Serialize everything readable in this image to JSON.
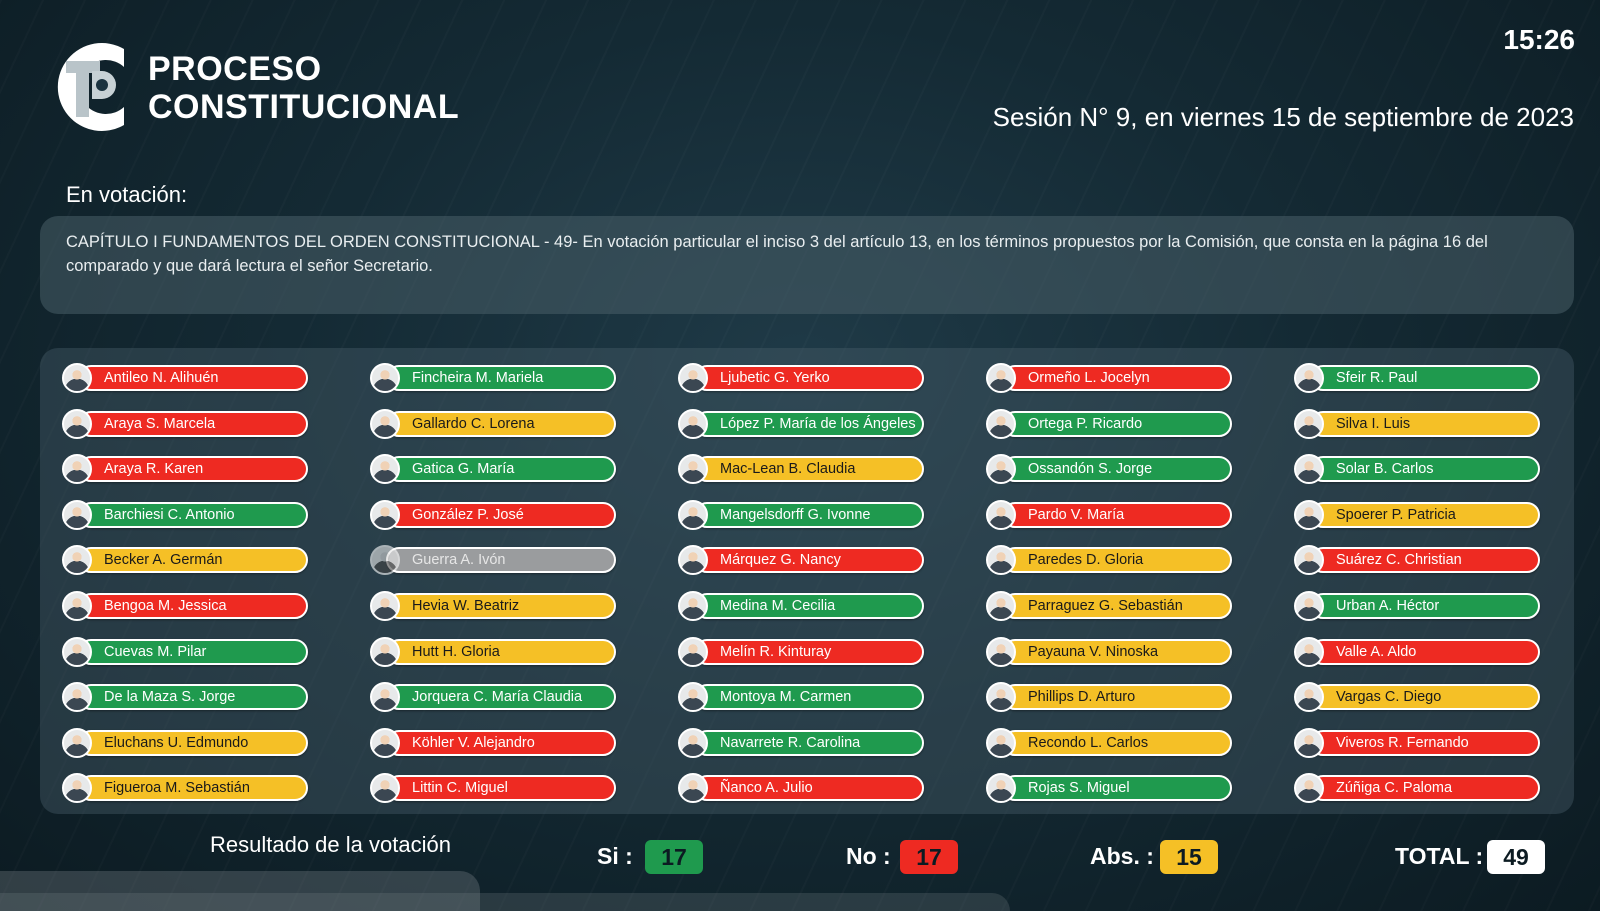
{
  "header": {
    "brand_line1": "PROCESO",
    "brand_line2": "CONSTITUCIONAL",
    "clock": "15:26",
    "session": "Sesión N° 9, en viernes 15 de septiembre de 2023"
  },
  "motion": {
    "label": "En votación:",
    "text": "CAPÍTULO I FUNDAMENTOS DEL ORDEN CONSTITUCIONAL - 49- En votación particular el inciso 3 del artículo 13, en los términos propuestos por la Comisión, que consta en la página 16 del comparado y que dará lectura el señor Secretario."
  },
  "vote_colors": {
    "si": "#1f9a4e",
    "no": "#ee2a22",
    "abs": "#f5c026",
    "none": "#9a9c9e"
  },
  "members": [
    [
      {
        "name": "Antileo N. Alihuén",
        "vote": "no"
      },
      {
        "name": "Araya S. Marcela",
        "vote": "no"
      },
      {
        "name": "Araya R. Karen",
        "vote": "no"
      },
      {
        "name": "Barchiesi C. Antonio",
        "vote": "si"
      },
      {
        "name": "Becker A. Germán",
        "vote": "abs"
      },
      {
        "name": "Bengoa M. Jessica",
        "vote": "no"
      },
      {
        "name": "Cuevas M. Pilar",
        "vote": "si"
      },
      {
        "name": "De la Maza S. Jorge",
        "vote": "si"
      },
      {
        "name": "Eluchans U. Edmundo",
        "vote": "abs"
      },
      {
        "name": "Figueroa M. Sebastián",
        "vote": "abs"
      }
    ],
    [
      {
        "name": "Fincheira M. Mariela",
        "vote": "si"
      },
      {
        "name": "Gallardo C. Lorena",
        "vote": "abs"
      },
      {
        "name": "Gatica G. María",
        "vote": "si"
      },
      {
        "name": "González P. José",
        "vote": "no"
      },
      {
        "name": "Guerra A. Ivón",
        "vote": "none"
      },
      {
        "name": "Hevia W. Beatriz",
        "vote": "abs"
      },
      {
        "name": "Hutt H. Gloria",
        "vote": "abs"
      },
      {
        "name": "Jorquera C. María Claudia",
        "vote": "si"
      },
      {
        "name": "Köhler V. Alejandro",
        "vote": "no"
      },
      {
        "name": "Littin C. Miguel",
        "vote": "no"
      }
    ],
    [
      {
        "name": "Ljubetic G. Yerko",
        "vote": "no"
      },
      {
        "name": "López P. María de los Ángeles",
        "vote": "si"
      },
      {
        "name": "Mac-Lean B. Claudia",
        "vote": "abs"
      },
      {
        "name": "Mangelsdorff G. Ivonne",
        "vote": "si"
      },
      {
        "name": "Márquez G. Nancy",
        "vote": "no"
      },
      {
        "name": "Medina M. Cecilia",
        "vote": "si"
      },
      {
        "name": "Melín R. Kinturay",
        "vote": "no"
      },
      {
        "name": "Montoya M. Carmen",
        "vote": "si"
      },
      {
        "name": "Navarrete R. Carolina",
        "vote": "si"
      },
      {
        "name": "Ñanco A. Julio",
        "vote": "no"
      }
    ],
    [
      {
        "name": "Ormeño L. Jocelyn",
        "vote": "no"
      },
      {
        "name": "Ortega P. Ricardo",
        "vote": "si"
      },
      {
        "name": "Ossandón S. Jorge",
        "vote": "si"
      },
      {
        "name": "Pardo V. María",
        "vote": "no"
      },
      {
        "name": "Paredes D. Gloria",
        "vote": "abs"
      },
      {
        "name": "Parraguez G. Sebastián",
        "vote": "abs"
      },
      {
        "name": "Payauna V. Ninoska",
        "vote": "abs"
      },
      {
        "name": "Phillips D. Arturo",
        "vote": "abs"
      },
      {
        "name": "Recondo L. Carlos",
        "vote": "abs"
      },
      {
        "name": "Rojas S. Miguel",
        "vote": "si"
      }
    ],
    [
      {
        "name": "Sfeir R. Paul",
        "vote": "si"
      },
      {
        "name": "Silva I. Luis",
        "vote": "abs"
      },
      {
        "name": "Solar B. Carlos",
        "vote": "si"
      },
      {
        "name": "Spoerer P. Patricia",
        "vote": "abs"
      },
      {
        "name": "Suárez C. Christian",
        "vote": "no"
      },
      {
        "name": "Urban A. Héctor",
        "vote": "si"
      },
      {
        "name": "Valle A. Aldo",
        "vote": "no"
      },
      {
        "name": "Vargas C. Diego",
        "vote": "abs"
      },
      {
        "name": "Viveros R. Fernando",
        "vote": "no"
      },
      {
        "name": "Zúñiga C. Paloma",
        "vote": "no"
      }
    ]
  ],
  "results": {
    "title": "Resultado de la votación",
    "si_label": "Si :",
    "si_value": "17",
    "no_label": "No :",
    "no_value": "17",
    "abs_label": "Abs. :",
    "abs_value": "15",
    "total_label": "TOTAL :",
    "total_value": "49"
  }
}
